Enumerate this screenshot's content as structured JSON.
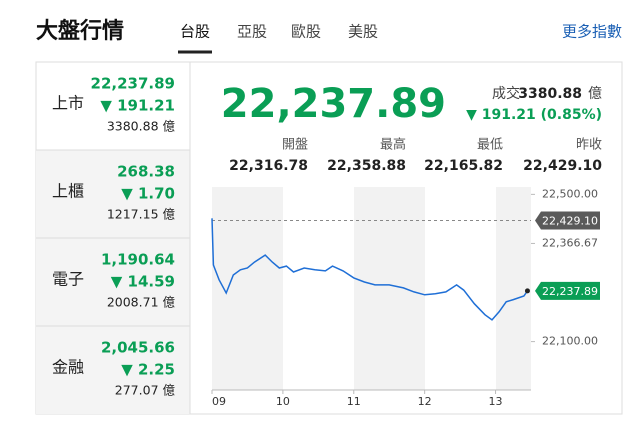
{
  "header": {
    "title": "大盤行情",
    "tabs": [
      "台股",
      "亞股",
      "歐股",
      "美股"
    ],
    "more": "更多指數"
  },
  "indices": [
    {
      "name": "上市",
      "price": "22,237.89",
      "change": "▼ 191.21",
      "volume": "3380.88 億"
    },
    {
      "name": "上櫃",
      "price": "268.38",
      "change": "▼ 1.70",
      "volume": "1217.15 億"
    },
    {
      "name": "電子",
      "price": "1,190.64",
      "change": "▼ 14.59",
      "volume": "2008.71 億"
    },
    {
      "name": "金融",
      "price": "2,045.66",
      "change": "▼ 2.25",
      "volume": "277.07 億"
    }
  ],
  "quote": {
    "price": "22,237.89",
    "volume_label": "成交",
    "volume": "3380.88",
    "volume_unit": "億",
    "change": "▼ 191.21 (0.85%)",
    "stats": [
      {
        "label": "開盤",
        "value": "22,316.78"
      },
      {
        "label": "最高",
        "value": "22,358.88"
      },
      {
        "label": "最低",
        "value": "22,165.82"
      },
      {
        "label": "昨收",
        "value": "22,429.10"
      }
    ]
  },
  "chart_data": {
    "type": "line",
    "color": "#1f6fd6",
    "x": [
      9.0,
      9.02,
      9.1,
      9.2,
      9.3,
      9.4,
      9.5,
      9.6,
      9.75,
      9.85,
      9.95,
      10.05,
      10.15,
      10.3,
      10.45,
      10.6,
      10.7,
      10.85,
      11.0,
      11.15,
      11.3,
      11.5,
      11.7,
      11.85,
      12.0,
      12.15,
      12.3,
      12.45,
      12.55,
      12.7,
      12.85,
      12.95,
      13.05,
      13.15,
      13.25,
      13.4,
      13.45
    ],
    "values": [
      22435,
      22308,
      22268,
      22232,
      22281,
      22295,
      22300,
      22316,
      22335,
      22316,
      22300,
      22305,
      22289,
      22300,
      22295,
      22292,
      22305,
      22292,
      22273,
      22262,
      22254,
      22254,
      22246,
      22235,
      22227,
      22230,
      22235,
      22254,
      22240,
      22203,
      22173,
      22159,
      22181,
      22208,
      22214,
      22224,
      22237.89
    ],
    "xlim": [
      9,
      13.5
    ],
    "xticks": [
      {
        "value": 9,
        "label": "09"
      },
      10,
      11,
      12,
      13
    ],
    "ylim": [
      22050,
      22520
    ],
    "yticks": [
      {
        "value": 22500,
        "label": "22,500.00"
      },
      {
        "value": 22366.67,
        "label": "22,366.67"
      },
      {
        "value": 22100,
        "label": "22,100.00"
      }
    ],
    "reference": {
      "value": 22429.1,
      "label": "22,429.10"
    },
    "last_label": {
      "value": 22237.89,
      "label": "22,237.89"
    }
  }
}
